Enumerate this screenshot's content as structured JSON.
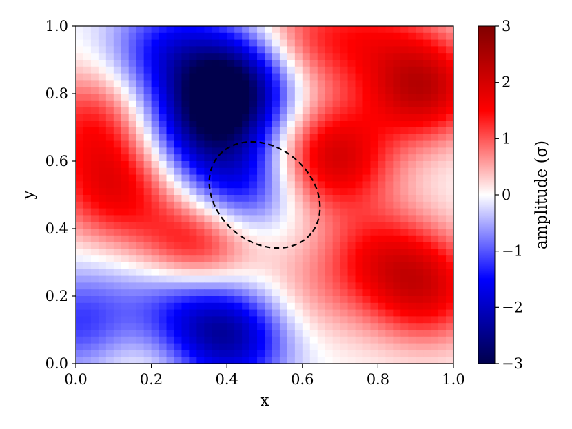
{
  "chart_data": {
    "type": "heatmap",
    "title": "",
    "xlabel": "x",
    "ylabel": "y",
    "xlim": [
      0.0,
      1.0
    ],
    "ylim": [
      0.0,
      1.0
    ],
    "x_ticks": [
      "0.0",
      "0.2",
      "0.4",
      "0.6",
      "0.8",
      "1.0"
    ],
    "y_ticks": [
      "0.0",
      "0.2",
      "0.4",
      "0.6",
      "0.8",
      "1.0"
    ],
    "colorbar": {
      "label": "amplitude (σ)",
      "range": [
        -3,
        3
      ],
      "ticks": [
        "−3",
        "−2",
        "−1",
        "0",
        "1",
        "2",
        "3"
      ],
      "colormap": "seismic",
      "colors": [
        "#00004c",
        "#0000ff",
        "#ffffff",
        "#ff0000",
        "#800000"
      ]
    },
    "grid": false,
    "features": [
      {
        "x": 0.42,
        "y": 0.83,
        "amplitude": -2.7
      },
      {
        "x": 0.34,
        "y": 0.7,
        "amplitude": -1.8
      },
      {
        "x": 0.43,
        "y": 0.52,
        "amplitude": -1.5
      },
      {
        "x": 0.24,
        "y": 0.93,
        "amplitude": -1.3
      },
      {
        "x": 0.41,
        "y": 0.08,
        "amplitude": -2.1
      },
      {
        "x": 0.27,
        "y": 0.18,
        "amplitude": -1.2
      },
      {
        "x": 0.01,
        "y": 0.12,
        "amplitude": -1.2
      },
      {
        "x": 0.92,
        "y": 0.82,
        "amplitude": 2.2
      },
      {
        "x": 0.68,
        "y": 0.61,
        "amplitude": 2.0
      },
      {
        "x": 0.1,
        "y": 0.52,
        "amplitude": 1.6
      },
      {
        "x": 0.04,
        "y": 0.72,
        "amplitude": 1.2
      },
      {
        "x": 0.32,
        "y": 0.35,
        "amplitude": 1.8
      },
      {
        "x": 0.93,
        "y": 0.22,
        "amplitude": 1.7
      },
      {
        "x": 0.8,
        "y": 0.32,
        "amplitude": 1.2
      },
      {
        "x": 0.6,
        "y": 0.95,
        "amplitude": 1.0
      },
      {
        "x": 0.78,
        "y": 0.98,
        "amplitude": 0.9
      },
      {
        "x": 0.6,
        "y": 0.2,
        "amplitude": 0.5
      },
      {
        "x": 0.17,
        "y": 0.02,
        "amplitude": 0.4
      }
    ],
    "annotations": [
      {
        "type": "dashed-ellipse",
        "center": [
          0.5,
          0.5
        ],
        "rx": 0.16,
        "ry": 0.14,
        "angle_deg": -40
      }
    ]
  }
}
